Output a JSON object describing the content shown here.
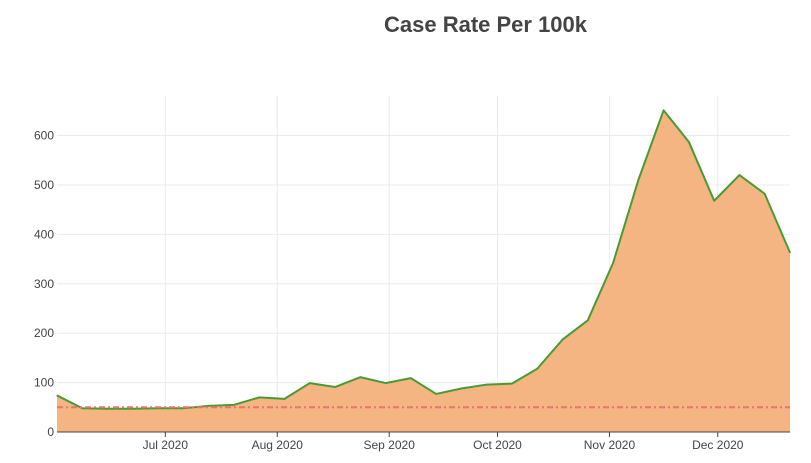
{
  "chart_data": {
    "type": "area",
    "title": "Case Rate Per 100k",
    "xlabel": "",
    "ylabel": "",
    "x_range": [
      "2020-06-01",
      "2020-12-21"
    ],
    "ylim": [
      0,
      680
    ],
    "grid": true,
    "legend": "none",
    "x_ticks": [
      {
        "date": "2020-07-01",
        "label": "Jul 2020"
      },
      {
        "date": "2020-08-01",
        "label": "Aug 2020"
      },
      {
        "date": "2020-09-01",
        "label": "Sep 2020"
      },
      {
        "date": "2020-10-01",
        "label": "Oct 2020"
      },
      {
        "date": "2020-11-01",
        "label": "Nov 2020"
      },
      {
        "date": "2020-12-01",
        "label": "Dec 2020"
      }
    ],
    "y_ticks": [
      0,
      100,
      200,
      300,
      400,
      500,
      600
    ],
    "series": [
      {
        "style": "area",
        "line_color": "#4a9a32",
        "fill_color": "#f4b583",
        "x": [
          "2020-06-01",
          "2020-06-08",
          "2020-06-15",
          "2020-06-22",
          "2020-06-29",
          "2020-07-06",
          "2020-07-13",
          "2020-07-20",
          "2020-07-27",
          "2020-08-03",
          "2020-08-10",
          "2020-08-17",
          "2020-08-24",
          "2020-08-31",
          "2020-09-07",
          "2020-09-14",
          "2020-09-21",
          "2020-09-28",
          "2020-10-05",
          "2020-10-12",
          "2020-10-19",
          "2020-10-26",
          "2020-11-02",
          "2020-11-09",
          "2020-11-16",
          "2020-11-23",
          "2020-11-30",
          "2020-12-07",
          "2020-12-14",
          "2020-12-21"
        ],
        "values": [
          74,
          48,
          47,
          47,
          48,
          48,
          53,
          55,
          70,
          67,
          99,
          91,
          111,
          99,
          109,
          77,
          88,
          96,
          98,
          128,
          187,
          226,
          342,
          510,
          651,
          587,
          468,
          520,
          482,
          363
        ]
      },
      {
        "style": "dash-dot",
        "line_color": "#e8756a",
        "x": [
          "2020-06-01",
          "2020-12-21"
        ],
        "values": [
          50,
          50
        ]
      }
    ]
  }
}
